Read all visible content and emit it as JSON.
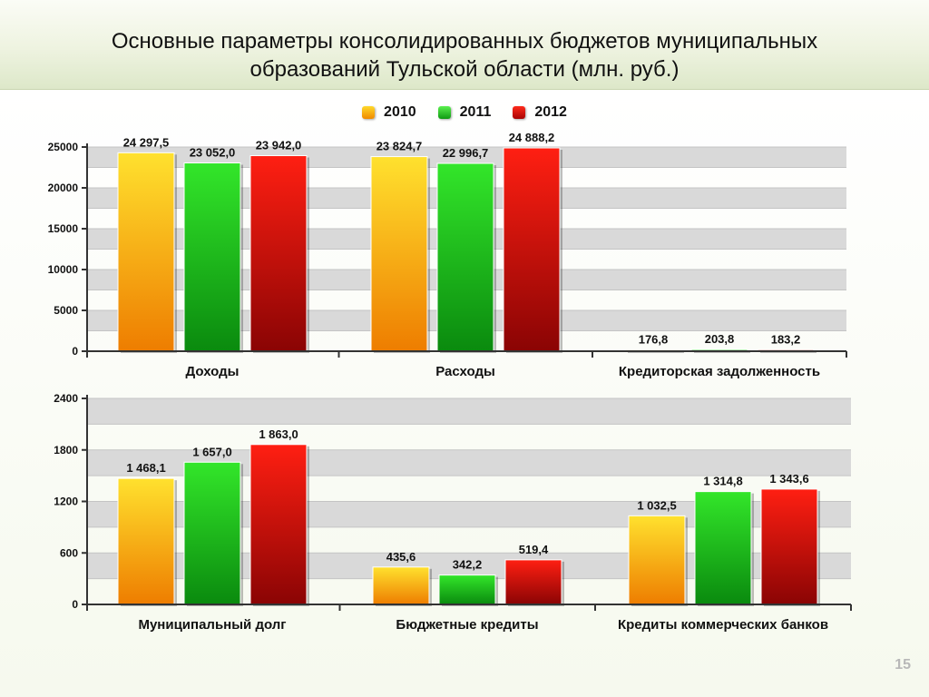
{
  "slide": {
    "title_line1": "Основные параметры консолидированных бюджетов муниципальных",
    "title_line2": "образований Тульской области (млн. руб.)",
    "page_number": "15"
  },
  "colors": {
    "2010": "#f7a31c",
    "2011": "#22c41e",
    "2012": "#d61212",
    "grid_band": "#d9d9d9"
  },
  "legend": [
    {
      "label": "2010",
      "color_key": "2010"
    },
    {
      "label": "2011",
      "color_key": "2011"
    },
    {
      "label": "2012",
      "color_key": "2012"
    }
  ],
  "chart_data": [
    {
      "type": "bar",
      "title": "",
      "xlabel": "",
      "ylabel": "",
      "categories": [
        "Доходы",
        "Расходы",
        "Кредиторская задолженность"
      ],
      "series": [
        {
          "name": "2010",
          "values": [
            24297.5,
            23824.7,
            176.8
          ],
          "labels": [
            "24 297,5",
            "23 824,7",
            "176,8"
          ]
        },
        {
          "name": "2011",
          "values": [
            23052.0,
            22996.7,
            203.8
          ],
          "labels": [
            "23 052,0",
            "22 996,7",
            "203,8"
          ]
        },
        {
          "name": "2012",
          "values": [
            23942.0,
            24888.2,
            183.2
          ],
          "labels": [
            "23 942,0",
            "24 888,2",
            "183,2"
          ]
        }
      ],
      "ylim": [
        0,
        25000
      ],
      "yticks": [
        0,
        5000,
        10000,
        15000,
        20000,
        25000
      ],
      "grid": true,
      "legend": "top-center"
    },
    {
      "type": "bar",
      "title": "",
      "xlabel": "",
      "ylabel": "",
      "categories": [
        "Муниципальный долг",
        "Бюджетные кредиты",
        "Кредиты коммерческих банков"
      ],
      "series": [
        {
          "name": "2010",
          "values": [
            1468.1,
            435.6,
            1032.5
          ],
          "labels": [
            "1 468,1",
            "435,6",
            "1 032,5"
          ]
        },
        {
          "name": "2011",
          "values": [
            1657.0,
            342.2,
            1314.8
          ],
          "labels": [
            "1 657,0",
            "342,2",
            "1 314,8"
          ]
        },
        {
          "name": "2012",
          "values": [
            1863.0,
            519.4,
            1343.6
          ],
          "labels": [
            "1 863,0",
            "519,4",
            "1 343,6"
          ]
        }
      ],
      "ylim": [
        0,
        2400
      ],
      "yticks": [
        0,
        600,
        1200,
        1800,
        2400
      ],
      "grid": true,
      "legend": "top-center"
    }
  ]
}
